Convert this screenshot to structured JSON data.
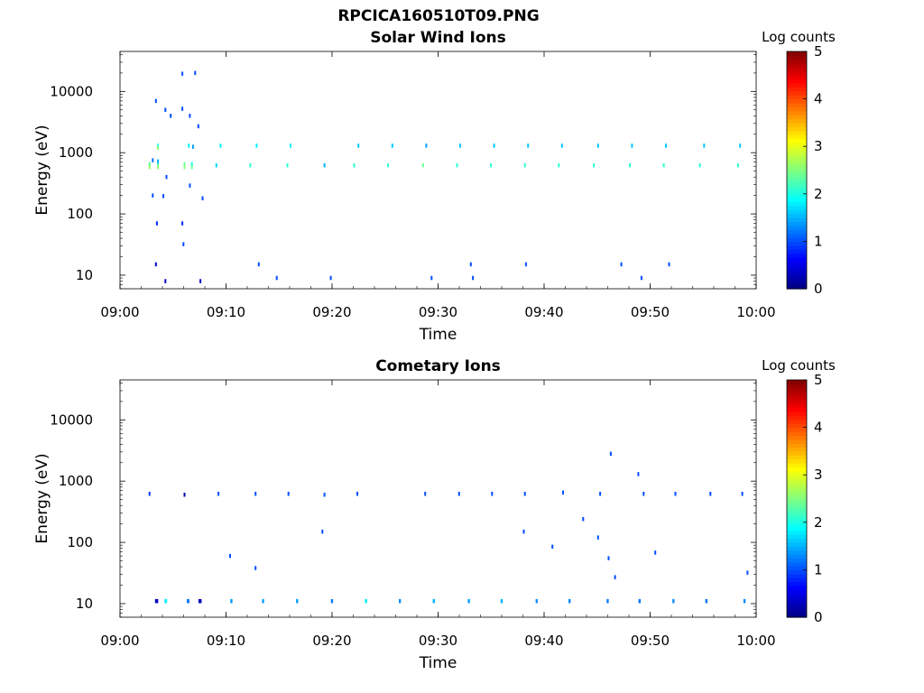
{
  "figure_title": "RPCICA160510T09.PNG",
  "chart_data": [
    {
      "type": "heatmap",
      "title": "Solar Wind Ions",
      "xlabel": "Time",
      "ylabel": "Energy (eV)",
      "x_ticks": [
        "09:00",
        "09:10",
        "09:20",
        "09:30",
        "09:40",
        "09:50",
        "10:00"
      ],
      "xlim_min": [
        0,
        60
      ],
      "y_ticks": [
        "10",
        "100",
        "1000",
        "10000"
      ],
      "ylim": [
        6,
        45000
      ],
      "y_scale": "log",
      "colorbar": {
        "label": "Log counts",
        "range": [
          0,
          5
        ],
        "ticks": [
          "0",
          "1",
          "2",
          "3",
          "4",
          "5"
        ],
        "colormap": "jet"
      },
      "cells": [
        [
          3.5,
          0.15,
          1300,
          2.0
        ],
        [
          3.5,
          0.15,
          1200,
          2.5
        ],
        [
          3.5,
          0.15,
          650,
          2.2
        ],
        [
          3.5,
          0.15,
          580,
          2.6
        ],
        [
          2.7,
          0.15,
          650,
          2.3
        ],
        [
          2.7,
          0.15,
          580,
          2.6
        ],
        [
          3.5,
          0.12,
          720,
          1.5
        ],
        [
          3.0,
          0.1,
          750,
          1.2
        ],
        [
          6.0,
          0.15,
          650,
          2.4
        ],
        [
          6.0,
          0.15,
          580,
          2.5
        ],
        [
          6.7,
          0.15,
          650,
          2.0
        ],
        [
          6.7,
          0.15,
          580,
          2.4
        ],
        [
          6.4,
          0.12,
          1300,
          1.8
        ],
        [
          6.8,
          0.1,
          1250,
          1.4
        ],
        [
          9.4,
          0.1,
          1300,
          1.8
        ],
        [
          9.0,
          0.1,
          620,
          1.7
        ],
        [
          12.8,
          0.1,
          1300,
          1.8
        ],
        [
          12.2,
          0.1,
          620,
          2.1
        ],
        [
          16.0,
          0.1,
          1300,
          1.8
        ],
        [
          15.7,
          0.1,
          620,
          2.1
        ],
        [
          19.2,
          0.1,
          620,
          1.5
        ],
        [
          22.4,
          0.1,
          1300,
          1.6
        ],
        [
          22.0,
          0.1,
          620,
          2.1
        ],
        [
          25.6,
          0.1,
          1300,
          1.6
        ],
        [
          25.2,
          0.1,
          620,
          2.1
        ],
        [
          28.8,
          0.1,
          1300,
          1.4
        ],
        [
          28.5,
          0.1,
          620,
          2.4
        ],
        [
          32.0,
          0.1,
          1300,
          1.6
        ],
        [
          31.7,
          0.1,
          620,
          2.1
        ],
        [
          35.2,
          0.1,
          1300,
          1.6
        ],
        [
          34.9,
          0.1,
          620,
          2.1
        ],
        [
          38.4,
          0.1,
          1300,
          1.6
        ],
        [
          38.1,
          0.1,
          620,
          2.1
        ],
        [
          41.6,
          0.1,
          1300,
          1.6
        ],
        [
          41.3,
          0.1,
          620,
          2.1
        ],
        [
          45.0,
          0.1,
          1300,
          1.6
        ],
        [
          44.6,
          0.1,
          620,
          2.1
        ],
        [
          48.2,
          0.1,
          1300,
          1.6
        ],
        [
          48.0,
          0.1,
          620,
          2.1
        ],
        [
          51.4,
          0.1,
          1300,
          1.6
        ],
        [
          51.2,
          0.1,
          620,
          2.1
        ],
        [
          55.0,
          0.1,
          1300,
          1.6
        ],
        [
          54.6,
          0.1,
          620,
          2.1
        ],
        [
          58.4,
          0.1,
          1300,
          1.6
        ],
        [
          58.2,
          0.1,
          620,
          2.1
        ],
        [
          3.3,
          0.1,
          7000,
          1.0
        ],
        [
          4.2,
          0.1,
          5000,
          1.0
        ],
        [
          4.7,
          0.1,
          4000,
          1.0
        ],
        [
          5.8,
          0.1,
          5200,
          1.0
        ],
        [
          6.5,
          0.1,
          4000,
          1.0
        ],
        [
          7.3,
          0.1,
          2700,
          1.0
        ],
        [
          5.8,
          0.1,
          19500,
          1.0
        ],
        [
          7.0,
          0.1,
          20000,
          1.0
        ],
        [
          3.0,
          0.1,
          200,
          1.0
        ],
        [
          4.0,
          0.1,
          195,
          1.0
        ],
        [
          7.7,
          0.1,
          180,
          1.0
        ],
        [
          6.5,
          0.1,
          290,
          1.0
        ],
        [
          4.3,
          0.1,
          400,
          1.0
        ],
        [
          5.9,
          0.1,
          32,
          1.0
        ],
        [
          3.4,
          0.1,
          70,
          0.8
        ],
        [
          5.8,
          0.1,
          70,
          0.8
        ],
        [
          3.3,
          0.15,
          15,
          0.4
        ],
        [
          4.2,
          0.15,
          8,
          0.4
        ],
        [
          7.5,
          0.15,
          8,
          0.4
        ],
        [
          13.0,
          0.06,
          15,
          1.0
        ],
        [
          14.7,
          0.06,
          9,
          1.0
        ],
        [
          19.8,
          0.06,
          9,
          1.0
        ],
        [
          29.3,
          0.06,
          9,
          1.0
        ],
        [
          33.2,
          0.06,
          9,
          1.0
        ],
        [
          38.2,
          0.06,
          15,
          1.0
        ],
        [
          47.2,
          0.06,
          15,
          1.0
        ],
        [
          49.1,
          0.06,
          9,
          1.0
        ],
        [
          51.7,
          0.06,
          15,
          1.0
        ],
        [
          33.0,
          0.06,
          15,
          1.0
        ]
      ]
    },
    {
      "type": "heatmap",
      "title": "Cometary Ions",
      "xlabel": "Time",
      "ylabel": "Energy (eV)",
      "x_ticks": [
        "09:00",
        "09:10",
        "09:20",
        "09:30",
        "09:40",
        "09:50",
        "10:00"
      ],
      "xlim_min": [
        0,
        60
      ],
      "y_ticks": [
        "10",
        "100",
        "1000",
        "10000"
      ],
      "ylim": [
        6,
        45000
      ],
      "y_scale": "log",
      "colorbar": {
        "label": "Log counts",
        "range": [
          0,
          5
        ],
        "ticks": [
          "0",
          "1",
          "2",
          "3",
          "4",
          "5"
        ],
        "colormap": "jet"
      },
      "cells": [
        [
          2.7,
          0.1,
          620,
          0.9
        ],
        [
          6.0,
          0.1,
          600,
          0.2
        ],
        [
          9.2,
          0.05,
          620,
          1.0
        ],
        [
          12.7,
          0.05,
          620,
          1.0
        ],
        [
          15.8,
          0.05,
          620,
          1.0
        ],
        [
          19.2,
          0.05,
          600,
          1.0
        ],
        [
          22.3,
          0.05,
          620,
          1.0
        ],
        [
          28.7,
          0.05,
          620,
          1.0
        ],
        [
          31.9,
          0.05,
          620,
          1.0
        ],
        [
          35.0,
          0.05,
          620,
          1.0
        ],
        [
          38.1,
          0.05,
          620,
          1.0
        ],
        [
          41.7,
          0.06,
          650,
          1.0
        ],
        [
          45.2,
          0.05,
          620,
          1.0
        ],
        [
          49.3,
          0.05,
          620,
          1.0
        ],
        [
          52.3,
          0.05,
          620,
          1.0
        ],
        [
          55.6,
          0.05,
          620,
          1.0
        ],
        [
          58.6,
          0.05,
          620,
          1.0
        ],
        [
          46.2,
          0.05,
          2800,
          1.0
        ],
        [
          48.8,
          0.05,
          1300,
          1.0
        ],
        [
          43.6,
          0.05,
          240,
          1.0
        ],
        [
          40.7,
          0.05,
          85,
          1.0
        ],
        [
          38.0,
          0.05,
          150,
          1.0
        ],
        [
          10.3,
          0.05,
          60,
          1.0
        ],
        [
          12.7,
          0.05,
          38,
          1.0
        ],
        [
          19.0,
          0.05,
          150,
          1.0
        ],
        [
          45.0,
          0.05,
          120,
          1.0
        ],
        [
          46.0,
          0.05,
          55,
          1.0
        ],
        [
          46.6,
          0.05,
          27,
          1.0
        ],
        [
          59.1,
          0.05,
          32,
          1.0
        ],
        [
          50.4,
          0.05,
          68,
          1.0
        ],
        [
          3.3,
          0.3,
          11,
          0.3
        ],
        [
          4.2,
          0.25,
          11,
          1.8
        ],
        [
          6.3,
          0.25,
          11,
          1.2
        ],
        [
          7.4,
          0.3,
          11,
          0.3
        ],
        [
          10.4,
          0.2,
          11,
          1.4
        ],
        [
          13.4,
          0.2,
          11,
          1.4
        ],
        [
          16.6,
          0.2,
          11,
          1.4
        ],
        [
          19.9,
          0.2,
          11,
          1.2
        ],
        [
          23.1,
          0.2,
          11,
          1.8
        ],
        [
          26.3,
          0.2,
          11,
          1.3
        ],
        [
          29.5,
          0.2,
          11,
          1.5
        ],
        [
          32.8,
          0.2,
          11,
          1.4
        ],
        [
          35.9,
          0.2,
          11,
          1.5
        ],
        [
          39.2,
          0.2,
          11,
          1.3
        ],
        [
          42.3,
          0.2,
          11,
          1.3
        ],
        [
          45.9,
          0.2,
          11,
          1.2
        ],
        [
          48.9,
          0.2,
          11,
          1.2
        ],
        [
          52.1,
          0.2,
          11,
          1.3
        ],
        [
          55.2,
          0.2,
          11,
          1.2
        ],
        [
          58.8,
          0.2,
          11,
          1.3
        ]
      ]
    }
  ]
}
